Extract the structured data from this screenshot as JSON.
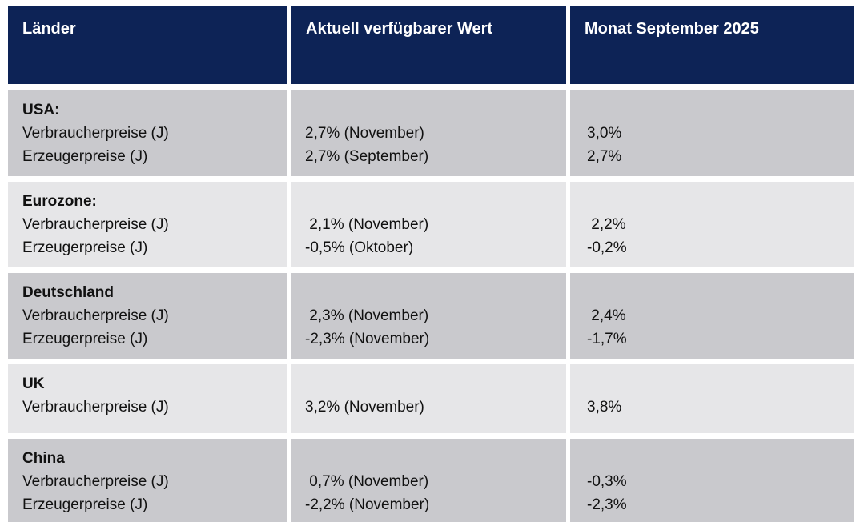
{
  "colors": {
    "page_bg": "#ffffff",
    "header_bg": "#0d2356",
    "header_text": "#ffffff",
    "row_dark": "#c9c9cd",
    "row_light": "#e6e6e8",
    "body_text": "#111111"
  },
  "table": {
    "columns": [
      "Länder",
      "Aktuell verfügbarer Wert",
      "Monat September 2025"
    ],
    "rows": [
      {
        "country": "USA:",
        "metrics": [
          "Verbraucherpreise (J)",
          "Erzeugerpreise (J)"
        ],
        "current": [
          "2,7% (November)",
          "2,7% (September)"
        ],
        "month_september": [
          "3,0%",
          "2,7%"
        ]
      },
      {
        "country": "Eurozone:",
        "metrics": [
          "Verbraucherpreise (J)",
          "Erzeugerpreise (J)"
        ],
        "current": [
          " 2,1% (November)",
          "-0,5% (Oktober)"
        ],
        "month_september": [
          " 2,2%",
          "-0,2%"
        ]
      },
      {
        "country": "Deutschland",
        "metrics": [
          "Verbraucherpreise (J)",
          "Erzeugerpreise (J)"
        ],
        "current": [
          " 2,3% (November)",
          "-2,3% (November)"
        ],
        "month_september": [
          " 2,4%",
          "-1,7%"
        ]
      },
      {
        "country": "UK",
        "metrics": [
          "Verbraucherpreise (J)"
        ],
        "current": [
          "3,2% (November)"
        ],
        "month_september": [
          "3,8%"
        ]
      },
      {
        "country": "China",
        "metrics": [
          "Verbraucherpreise (J)",
          "Erzeugerpreise (J)"
        ],
        "current": [
          " 0,7% (November)",
          "-2,2% (November)"
        ],
        "month_september": [
          "-0,3%",
          "-2,3%"
        ]
      }
    ]
  }
}
